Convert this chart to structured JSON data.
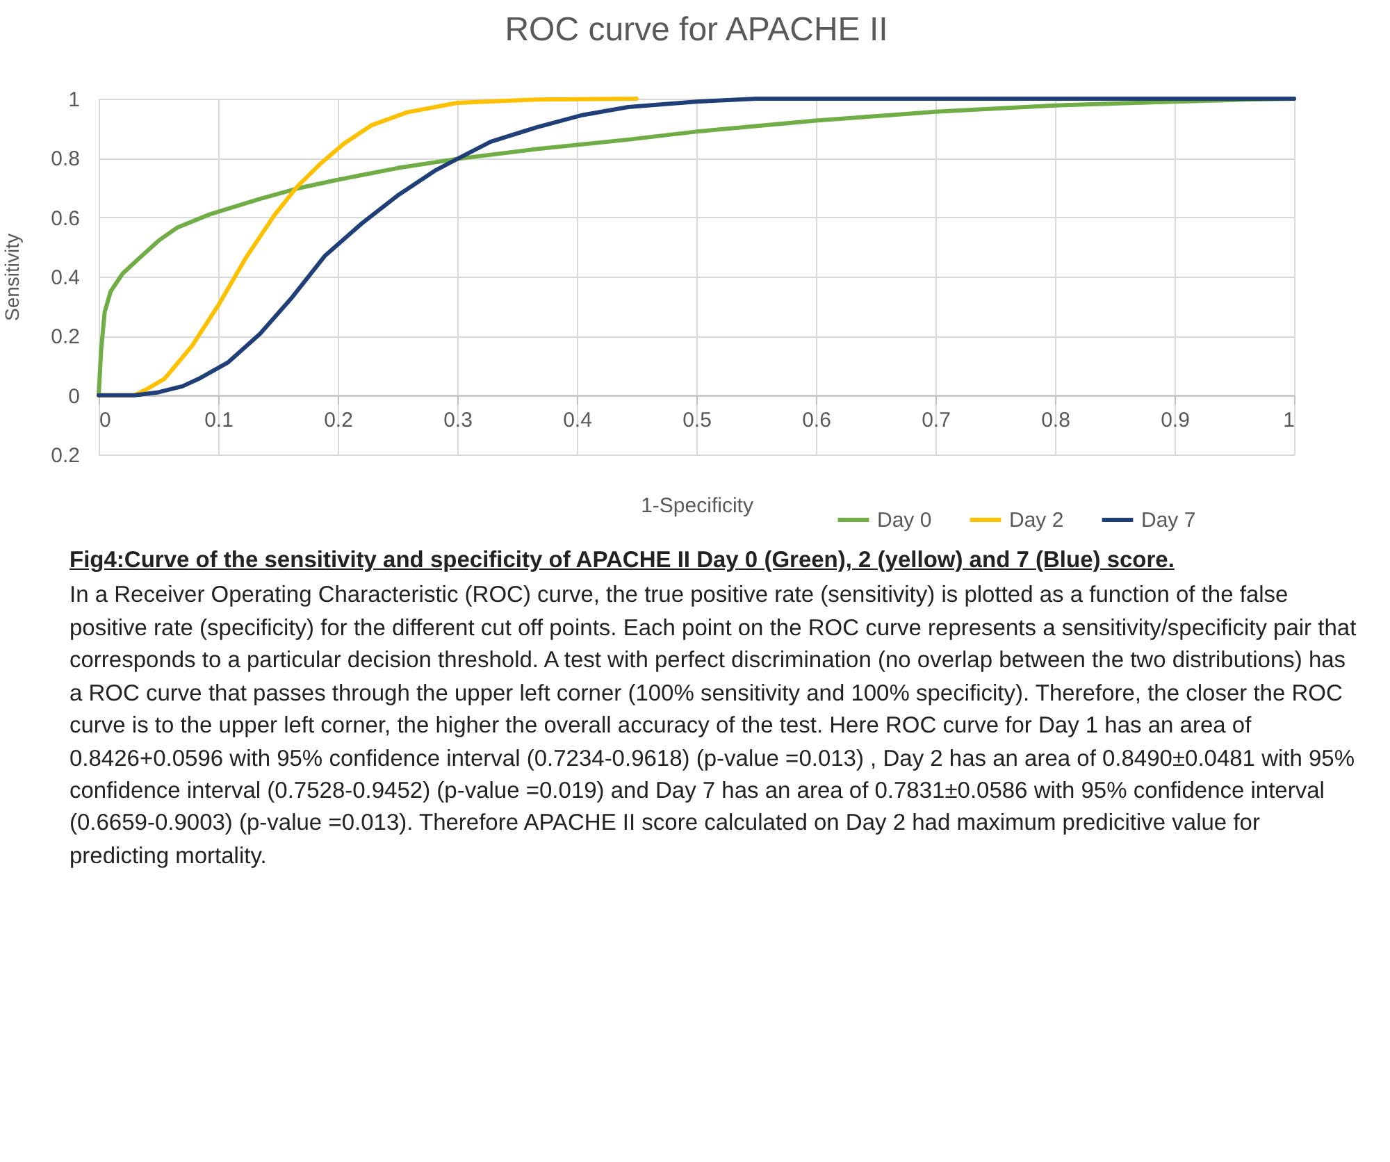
{
  "chart_data": {
    "type": "line",
    "title": "ROC curve for APACHE II",
    "xlabel": "1-Specificity",
    "ylabel": "Sensitivity",
    "xlim": [
      0,
      1
    ],
    "ylim": [
      -0.2,
      1
    ],
    "xticks": [
      0,
      0.1,
      0.2,
      0.3,
      0.4,
      0.5,
      0.6,
      0.7,
      0.8,
      0.9,
      1
    ],
    "yticks": [
      {
        "value": -0.2,
        "label": "0.2"
      },
      0,
      0.2,
      0.4,
      0.6,
      0.8,
      1
    ],
    "grid": true,
    "legend": "bottom right",
    "marker": "none",
    "line_style": "solid",
    "series": [
      {
        "name": "Day 0",
        "color": "#70ad47",
        "x": [
          0,
          0.002,
          0.005,
          0.01,
          0.02,
          0.032,
          0.051,
          0.066,
          0.093,
          0.135,
          0.166,
          0.197,
          0.25,
          0.3,
          0.366,
          0.443,
          0.5,
          0.6,
          0.7,
          0.8,
          0.9,
          0.96,
          1
        ],
        "values": [
          0,
          0.15,
          0.28,
          0.35,
          0.41,
          0.455,
          0.524,
          0.566,
          0.61,
          0.662,
          0.697,
          0.724,
          0.766,
          0.797,
          0.83,
          0.862,
          0.889,
          0.926,
          0.956,
          0.977,
          0.99,
          0.997,
          1
        ]
      },
      {
        "name": "Day 2",
        "color": "#ffc000",
        "x": [
          0,
          0.03,
          0.04,
          0.055,
          0.078,
          0.1,
          0.124,
          0.147,
          0.166,
          0.185,
          0.205,
          0.228,
          0.258,
          0.3,
          0.366,
          0.45
        ],
        "values": [
          0,
          0,
          0.02,
          0.055,
          0.166,
          0.303,
          0.469,
          0.607,
          0.703,
          0.779,
          0.848,
          0.91,
          0.954,
          0.986,
          0.997,
          1
        ]
      },
      {
        "name": "Day 7",
        "color": "#203f78",
        "x": [
          0,
          0.03,
          0.05,
          0.07,
          0.085,
          0.108,
          0.135,
          0.162,
          0.189,
          0.22,
          0.251,
          0.282,
          0.3,
          0.328,
          0.366,
          0.405,
          0.443,
          0.5,
          0.55,
          1
        ],
        "values": [
          0,
          0,
          0.01,
          0.03,
          0.058,
          0.11,
          0.207,
          0.331,
          0.469,
          0.579,
          0.676,
          0.759,
          0.797,
          0.855,
          0.903,
          0.945,
          0.972,
          0.99,
          1,
          1
        ]
      }
    ],
    "annotations": [
      "Fig4:Curve of the sensitivity and specificity of APACHE II Day 0 (Green), 2 (yellow) and 7 (Blue) score.",
      "In a Receiver Operating Characteristic (ROC) curve, the true positive rate (sensitivity) is plotted as a function of the false positive rate (specificity) for the different cut off points. Each point on the ROC curve represents a sensitivity/specificity pair that corresponds to a particular decision threshold. A test with perfect discrimination (no overlap between the two distributions) has a ROC curve that passes through the upper left corner (100% sensitivity and 100% specificity). Therefore, the closer the ROC curve is to the upper left corner, the higher the overall accuracy of the test. Here ROC curve for Day 1 has an area of 0.8426+0.0596  with 95% confidence interval  (0.7234-0.9618)  (p-value =0.013) , Day 2 has an area of 0.8490±0.0481 with 95% confidence interval (0.7528-0.9452) (p-value =0.019) and Day 7 has an area of 0.7831±0.0586 with 95% confidence interval (0.6659-0.9003) (p-value =0.013). Therefore APACHE II score calculated on Day 2 had maximum predicitive value for predicting mortality."
    ]
  }
}
